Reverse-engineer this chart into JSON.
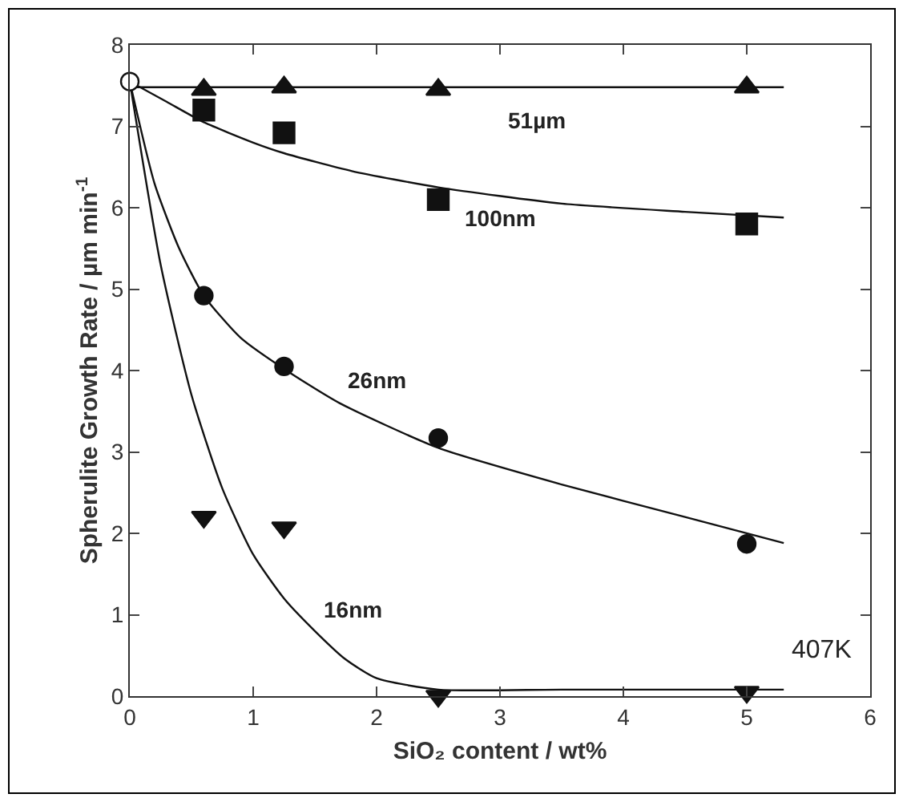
{
  "chart_data": {
    "type": "scatter",
    "xlabel": "SiO₂ content / wt%",
    "ylabel": "Spherulite Growth Rate / µm min$^{-1}$",
    "x": [
      0.6,
      1.25,
      2.5,
      5
    ],
    "series": [
      {
        "marker": "triangle",
        "color": "#111111",
        "values": [
          7.45,
          7.48,
          7.45,
          7.48
        ]
      },
      {
        "marker": "square",
        "color": "#111111",
        "values": [
          7.2,
          6.92,
          6.1,
          5.8
        ]
      },
      {
        "marker": "circle",
        "color": "#111111",
        "values": [
          4.92,
          4.05,
          3.17,
          1.87
        ]
      },
      {
        "marker": "triangle-down",
        "color": "#111111",
        "values": [
          2.2,
          2.07,
          0,
          0.05
        ]
      },
      {
        "marker": "circle",
        "color": "#ffffff",
        "x": [
          0
        ],
        "values": [
          7.55
        ]
      },
      {
        "type": "line",
        "color": "#111111",
        "x": [
          0,
          5.3
        ],
        "values": [
          7.48,
          7.48
        ]
      },
      {
        "type": "line",
        "color": "#111111",
        "x": [
          0,
          0.3,
          0.6,
          1.0,
          1.25,
          1.8,
          2.5,
          3.5,
          4.5,
          5.3
        ],
        "values": [
          7.55,
          7.3,
          7.05,
          6.8,
          6.67,
          6.45,
          6.25,
          6.05,
          5.95,
          5.88
        ]
      },
      {
        "type": "line",
        "color": "#111111",
        "x": [
          0,
          0.2,
          0.4,
          0.6,
          0.9,
          1.25,
          1.7,
          2.5,
          3.5,
          4.5,
          5.3
        ],
        "values": [
          7.55,
          6.3,
          5.5,
          4.92,
          4.4,
          4.02,
          3.6,
          3.05,
          2.6,
          2.2,
          1.88
        ]
      },
      {
        "type": "line",
        "color": "#111111",
        "x": [
          0,
          0.25,
          0.5,
          0.75,
          1.0,
          1.25,
          1.5,
          1.75,
          2.0,
          2.5,
          3.5,
          5.3
        ],
        "values": [
          7.55,
          5.3,
          3.7,
          2.55,
          1.74,
          1.2,
          0.8,
          0.45,
          0.22,
          0.08,
          0.08,
          0.08
        ]
      }
    ],
    "xlim": [
      0,
      6
    ],
    "xticks": [
      0,
      1,
      2,
      3,
      4,
      5,
      6
    ],
    "ylim": [
      0,
      8
    ],
    "yticks": [
      0,
      1,
      2,
      3,
      4,
      5,
      6,
      7,
      8
    ],
    "grid": false,
    "annotations": [
      "51µm",
      "100nm",
      {
        "text": "26nm",
        "x": 1.7,
        "y": 3.62
      },
      {
        "text": "16nm",
        "x": 1.5,
        "y": 0.8
      },
      "407K"
    ]
  }
}
